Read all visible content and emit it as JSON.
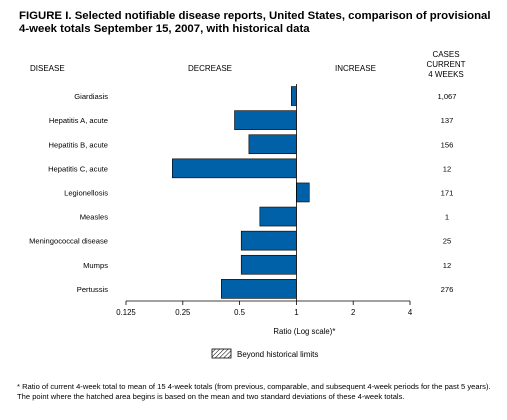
{
  "figure": {
    "title": "FIGURE I. Selected notifiable disease reports, United States, comparison of provisional 4-week totals September 15, 2007, with historical data",
    "footnote": "* Ratio of current 4-week total to mean of 15 4-week totals (from previous, comparable, and subsequent 4-week periods for the past 5 years). The point where the hatched area begins is based on the mean and two standard deviations of these 4-week totals."
  },
  "headers": {
    "disease": "DISEASE",
    "decrease": "DECREASE",
    "increase": "INCREASE",
    "cases": "CASES CURRENT\n4 WEEKS"
  },
  "chart_data": {
    "type": "bar",
    "orientation": "horizontal",
    "categories": [
      "Giardiasis",
      "Hepatitis A, acute",
      "Hepatitis B, acute",
      "Hepatitis C, acute",
      "Legionellosis",
      "Measles",
      "Meningococcal disease",
      "Mumps",
      "Pertussis"
    ],
    "values": [
      0.94,
      0.47,
      0.56,
      0.22,
      1.17,
      0.64,
      0.51,
      0.51,
      0.4
    ],
    "cases_current_4_weeks": [
      "1,067",
      "137",
      "156",
      "12",
      "171",
      "1",
      "25",
      "12",
      "276"
    ],
    "xscale": "log2",
    "xlim": [
      0.125,
      4
    ],
    "xticks": [
      "0.125",
      "0.25",
      "0.5",
      "1",
      "2",
      "4"
    ],
    "xlabel": "Ratio (Log scale)*",
    "legend_label": "Beyond historical limits",
    "bar_color": "#0060a8",
    "grid": false
  }
}
